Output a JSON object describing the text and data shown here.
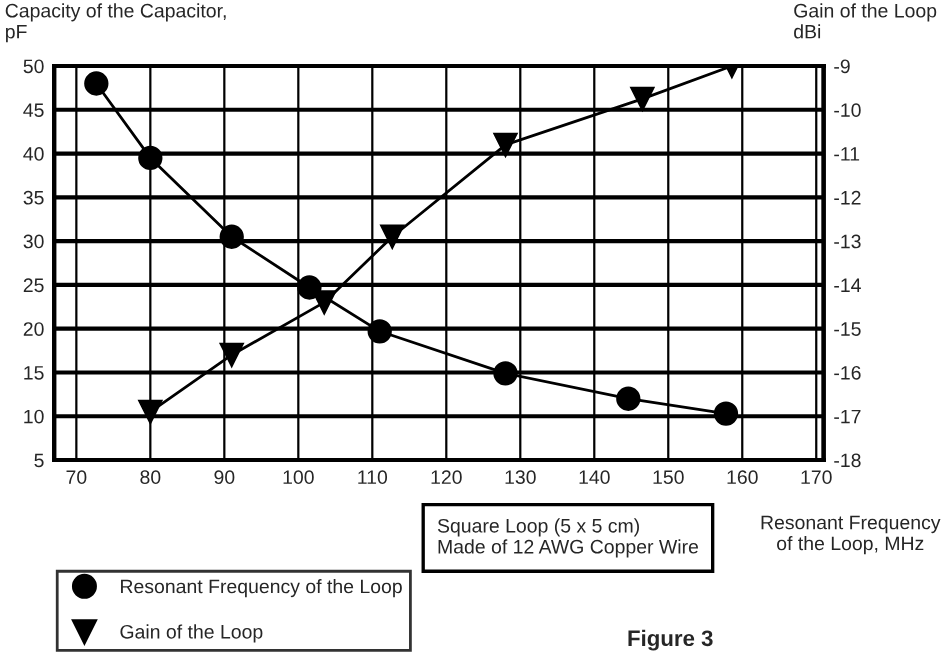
{
  "chart_data": {
    "type": "line",
    "xlabel": "Resonant Frequency\nof the Loop, MHz",
    "ylabel": "Capacity of the Capacitor,\npF",
    "y2label": "Gain of the Loop\ndBi",
    "series": [
      {
        "name": "Resonant Frequency of the Loop",
        "color": "#000000",
        "marker": "circle",
        "x": [
          72.7,
          80,
          91,
          101.5,
          111,
          128,
          144.6,
          157.8
        ],
        "values": [
          48,
          39.5,
          30.5,
          24.7,
          19.7,
          14.9,
          12,
          10.3
        ]
      },
      {
        "name": "Gain of the Loop",
        "color": "#000000",
        "marker": "triangle",
        "axis": "y2",
        "x": [
          80,
          91,
          103.5,
          112.7,
          128,
          146.5,
          158.6
        ],
        "values": [
          -16.9,
          -15.6,
          -14.4,
          -12.9,
          -10.8,
          -9.75,
          -9
        ]
      }
    ],
    "xlim": [
      67,
      171
    ],
    "xticks": [
      70,
      80,
      90,
      100,
      110,
      120,
      130,
      140,
      150,
      160,
      170
    ],
    "ylim": [
      5,
      50
    ],
    "yticks": [
      5,
      10,
      15,
      20,
      25,
      30,
      35,
      40,
      45,
      50
    ],
    "y2lim": [
      -18,
      -9
    ],
    "y2ticks": [
      -18,
      -17,
      -16,
      -15,
      -14,
      -13,
      -12,
      -11,
      -10,
      -9
    ],
    "grid": true,
    "legend": "bottom left",
    "line_style": "solid",
    "annotations": [
      "Square Loop (5 x 5 cm)\nMade of 12 AWG Copper Wire",
      "Figure 3"
    ]
  }
}
